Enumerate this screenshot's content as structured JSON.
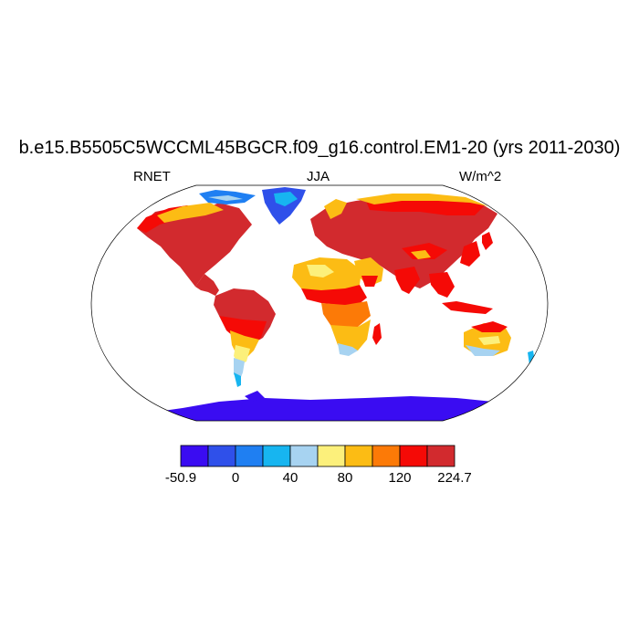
{
  "title": "b.e15.B5505C5WCCML45BGCR.f09_g16.control.EM1-20 (yrs 2011-2030)",
  "left_label": "RNET",
  "center_label": "JJA",
  "right_label": "W/m^2",
  "colorbar": {
    "colors": [
      "#3a0cf2",
      "#2f50ea",
      "#1f7ff2",
      "#17b5f0",
      "#a7d3f1",
      "#fcf07b",
      "#fcbc14",
      "#fc7a07",
      "#f50a06",
      "#d22a2e"
    ],
    "tick_labels": [
      "-50.9",
      "0",
      "40",
      "80",
      "120",
      "224.7"
    ]
  },
  "map": {
    "projection": "Robinson",
    "variable": "RNET",
    "season": "JJA",
    "units": "W/m^2"
  }
}
